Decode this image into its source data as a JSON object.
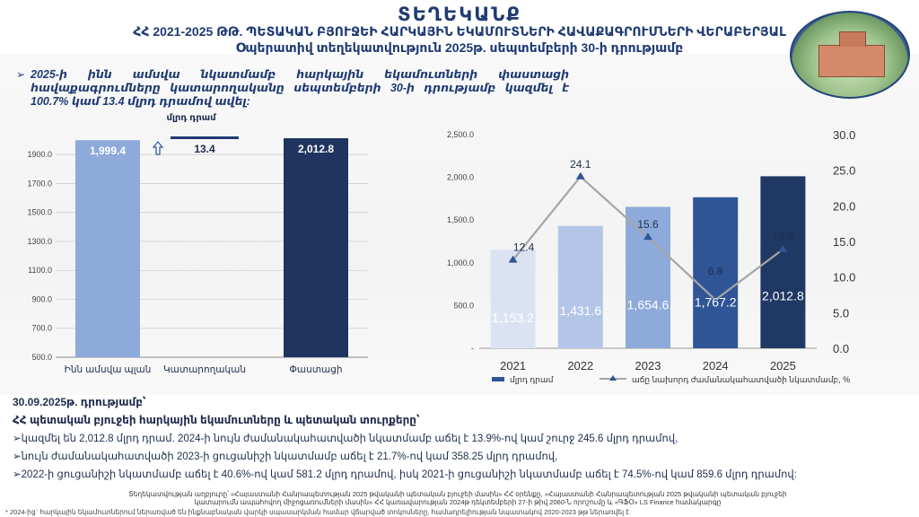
{
  "header": {
    "title": "ՏԵՂԵԿԱՆՔ",
    "subtitle_line1": "ՀՀ 2021-2025 ԹԹ. ՊԵՏԱԿԱՆ ԲՅՈՒՋԵԻ ՀԱՐԿԱՅԻՆ ԵԿԱՄՈՒՏՆԵՐԻ ՀԱՎԱՔԱԳՐՈՒՄՆԵՐԻ ՎԵՐԱԲԵՐՅԱԼ",
    "subtitle_line2": "Օպերատիվ տեղեկատվություն 2025թ. սեպտեմբերի 30-ի դրությամբ"
  },
  "intro": {
    "marker": "➢",
    "text": "2025-ի ինն ամսվա նկատմամբ հարկային եկամուտների փաստացի հավաքագրումները կատարողականը սեպտեմբերի 30-ի դրությամբ կազմել է 100.7% կամ 13.4 մլրդ դրամով ավել:"
  },
  "chart_data": [
    {
      "type": "bar",
      "categories": [
        "Ինն ամսվա պլան",
        "Կատարողական",
        "Փաստացի"
      ],
      "values": [
        1999.4,
        13.4,
        2012.8
      ],
      "data_labels": [
        "1,999.4",
        "13.4",
        "2,012.8"
      ],
      "unit_label": "մլրդ դրամ",
      "yticks": [
        "500.0",
        "700.0",
        "900.0",
        "1100.0",
        "1300.0",
        "1500.0",
        "1700.0",
        "1900.0"
      ],
      "ylim": [
        500,
        2050
      ],
      "colors": [
        "#8eaadb",
        "#1f3b73",
        "#1f3560"
      ],
      "arrow_icon": "up-arrow-icon"
    },
    {
      "type": "bar+line",
      "categories": [
        "2021",
        "2022",
        "2023",
        "2024",
        "2025"
      ],
      "series": [
        {
          "name": "մլրդ դրամ",
          "kind": "bar",
          "axis": "left",
          "values": [
            1153.2,
            1431.6,
            1654.6,
            1767.2,
            2012.8
          ],
          "labels": [
            "1,153.2",
            "1,431.6",
            "1,654.6",
            "1,767.2",
            "2,012.8"
          ],
          "colors": [
            "#dbe3f3",
            "#b4c6e7",
            "#8eaadb",
            "#2f5597",
            "#1f3864"
          ]
        },
        {
          "name": "աճը նախորդ ժամանակահատվածի նկատմամբ, %",
          "kind": "line",
          "axis": "right",
          "values": [
            12.4,
            24.1,
            15.6,
            6.8,
            13.9
          ],
          "labels": [
            "12.4",
            "24.1",
            "15.6",
            "6.8",
            "13.9"
          ],
          "color": "#a5a5a5",
          "marker_color": "#2f5597"
        }
      ],
      "yticks_left": [
        "-",
        "500.0",
        "1,000.0",
        "1,500.0",
        "2,000.0",
        "2,500.0"
      ],
      "ylim_left": [
        0,
        2500
      ],
      "yticks_right": [
        "0.0",
        "5.0",
        "10.0",
        "15.0",
        "20.0",
        "25.0",
        "30.0"
      ],
      "ylim_right": [
        0,
        30
      ],
      "legend_position": "bottom"
    }
  ],
  "footer": {
    "date": "30.09.2025թ. դրությամբ՝",
    "heading": "ՀՀ պետական բյուջեի հարկային եկամուտները և պետական տուրքերը՝",
    "bullets": [
      "➢կազմել են 2,012.8 մլրդ դրամ. 2024-ի նույն ժամանակահատվածի նկատմամբ աճել է 13.9%-ով կամ շուրջ 245.6 մլրդ դրամով,",
      "➢նույն ժամանակահատվածի 2023-ի ցուցանիշի նկատմամբ աճել է 21.7%-ով կամ 358.25 մլրդ դրամով,",
      "➢2022-ի ցուցանիշի նկատմամբ աճել է 40.6%-ով կամ 581.2 մլրդ դրամով, իսկ 2021-ի ցուցանիշի նկատմամբ աճել է 74.5%-ով կամ 859.6 մլրդ դրամով:"
    ],
    "source": "Տեղեկատվության աղբյուրը՝ «Հայաստանի Հանրապետության 2025 թվականի պետական բյուջեի մասին» ՀՀ օրենքը, «Հայաստանի Հանրապետության 2025 թվականի պետական բյուջեի կատարումն ապահովող միջոցառումների մասին» ՀՀ կառավարության 2024թ դեկտեմբերի 27-ի թիվ 2060-Ն որոշումը և «ԳՖՕ» LS Finance համակարգը",
    "note": "* 2024-ից` հարկային եկամուտներում ներառված են ինքնաբնական վարկի սպասարկման համար վճարված տոկոսները, համադրելիության նպատակով 2020-2023 թթ ներառվել է"
  }
}
